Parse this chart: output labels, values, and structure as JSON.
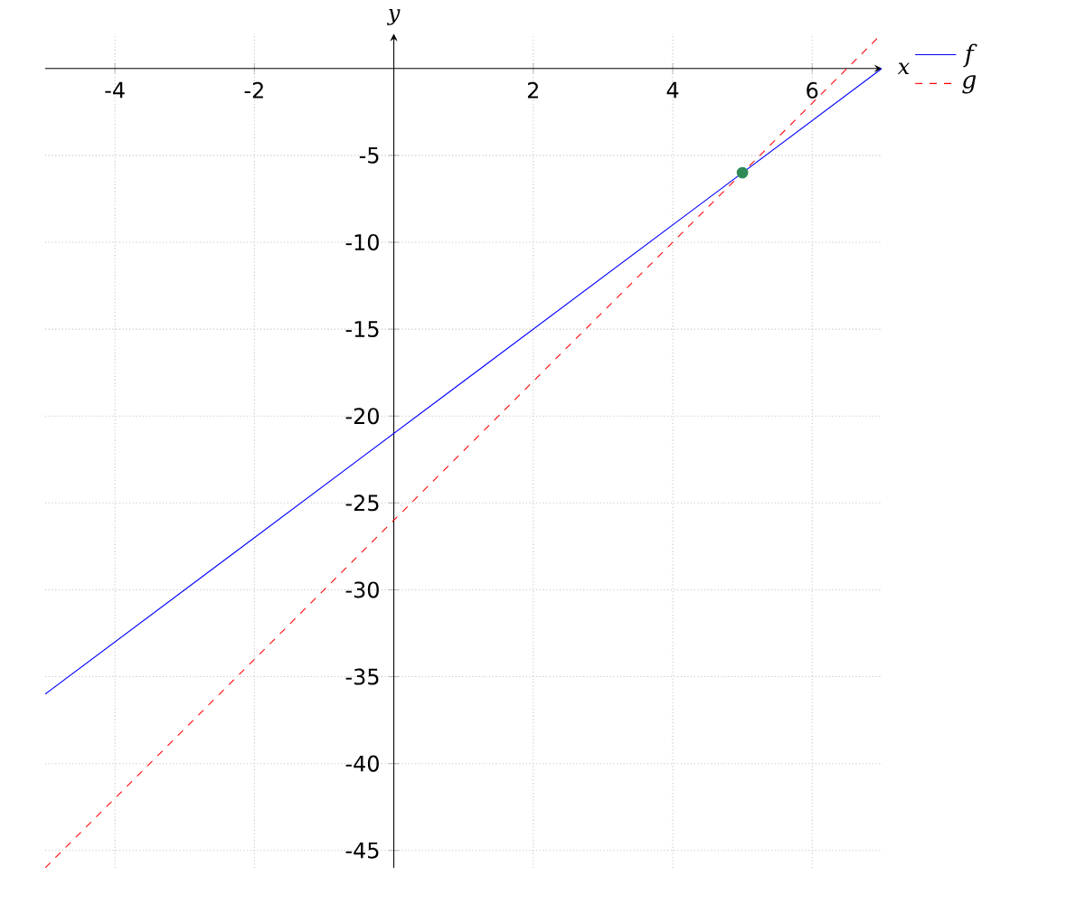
{
  "chart_data": {
    "type": "line",
    "xlabel": "x",
    "ylabel": "y",
    "xlim": [
      -5,
      7
    ],
    "ylim": [
      -46,
      2
    ],
    "xticks": [
      -4,
      -2,
      2,
      4,
      6
    ],
    "yticks": [
      -5,
      -10,
      -15,
      -20,
      -25,
      -30,
      -35,
      -40,
      -45
    ],
    "grid": true,
    "legend": "top right",
    "series": [
      {
        "name": "f",
        "color": "#0000ff",
        "x": [
          -5,
          7
        ],
        "values": [
          -36,
          0
        ],
        "line_style": "solid",
        "marker": "none"
      },
      {
        "name": "g",
        "color": "#ff0000",
        "x": [
          -5,
          7
        ],
        "values": [
          -46,
          2
        ],
        "line_style": "dashed",
        "marker": "none"
      },
      {
        "type": "scatter",
        "color": "#2e8b57",
        "x": [
          5
        ],
        "values": [
          -6
        ],
        "marker": "circle"
      }
    ]
  }
}
